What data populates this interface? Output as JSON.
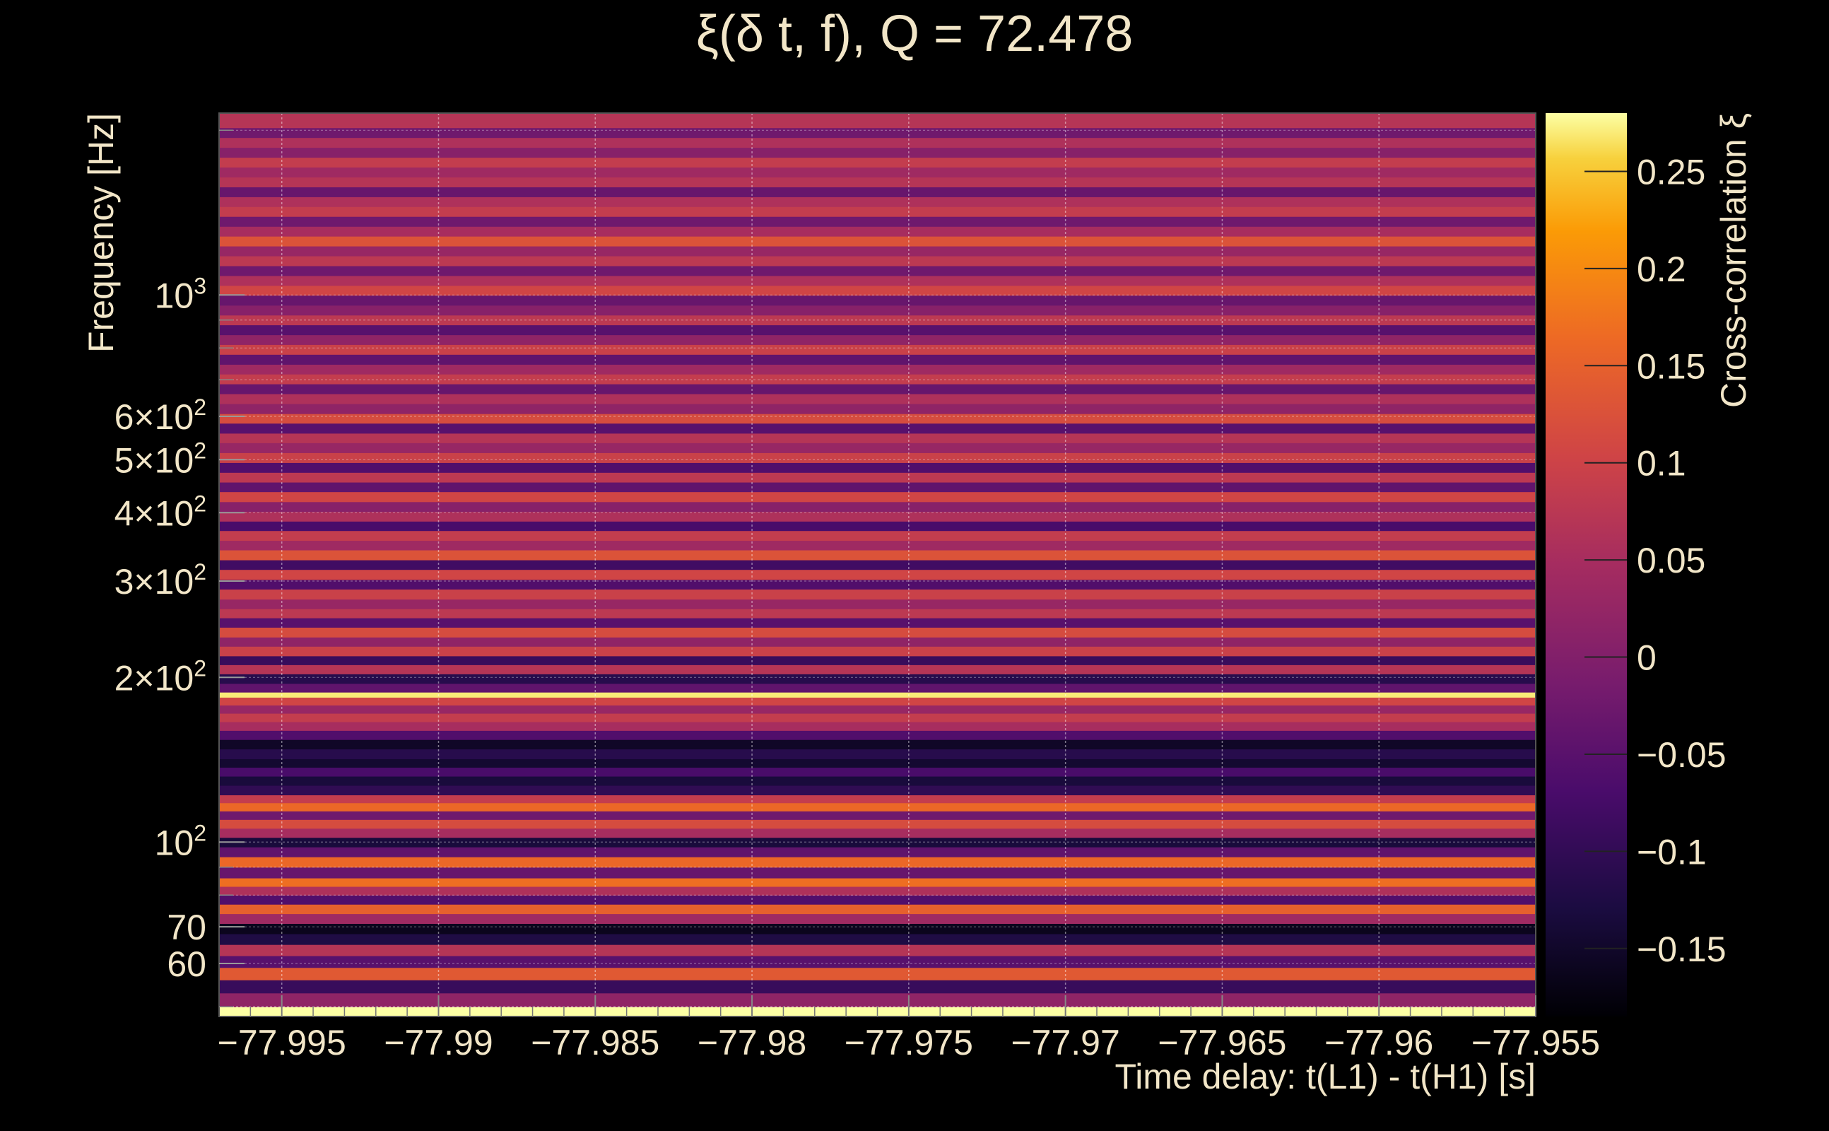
{
  "chart_data": {
    "type": "heatmap",
    "title": "ξ(δ t, f), Q = 72.478",
    "xlabel": "Time delay: t(L1) - t(H1) [s]",
    "ylabel": "Frequency [Hz]",
    "colorbar_label": "Cross-correlation ξ",
    "x_scale": "linear",
    "y_scale": "log",
    "xlim": [
      -77.997,
      -77.955
    ],
    "ylim": [
      48,
      2150
    ],
    "zlim": [
      -0.185,
      0.28
    ],
    "grid": true,
    "colormap": "inferno",
    "x_ticks": [
      {
        "value": -77.995,
        "label": "−77.995"
      },
      {
        "value": -77.99,
        "label": "−77.99"
      },
      {
        "value": -77.985,
        "label": "−77.985"
      },
      {
        "value": -77.98,
        "label": "−77.98"
      },
      {
        "value": -77.975,
        "label": "−77.975"
      },
      {
        "value": -77.97,
        "label": "−77.97"
      },
      {
        "value": -77.965,
        "label": "−77.965"
      },
      {
        "value": -77.96,
        "label": "−77.96"
      },
      {
        "value": -77.955,
        "label": "−77.955"
      }
    ],
    "y_ticks": [
      {
        "value": 60,
        "base": "60",
        "exp": ""
      },
      {
        "value": 70,
        "base": "70",
        "exp": ""
      },
      {
        "value": 100,
        "base": "10",
        "exp": "2"
      },
      {
        "value": 200,
        "base": "2×10",
        "exp": "2"
      },
      {
        "value": 300,
        "base": "3×10",
        "exp": "2"
      },
      {
        "value": 400,
        "base": "4×10",
        "exp": "2"
      },
      {
        "value": 500,
        "base": "5×10",
        "exp": "2"
      },
      {
        "value": 600,
        "base": "6×10",
        "exp": "2"
      },
      {
        "value": 1000,
        "base": "10",
        "exp": "3"
      }
    ],
    "colorbar_ticks": [
      {
        "value": 0.25,
        "label": "0.25"
      },
      {
        "value": 0.2,
        "label": "0.2"
      },
      {
        "value": 0.15,
        "label": "0.15"
      },
      {
        "value": 0.1,
        "label": "0.1"
      },
      {
        "value": 0.05,
        "label": "0.05"
      },
      {
        "value": 0.0,
        "label": "0"
      },
      {
        "value": -0.05,
        "label": "−0.05"
      },
      {
        "value": -0.1,
        "label": "−0.1"
      },
      {
        "value": -0.15,
        "label": "−0.15"
      }
    ],
    "frequency_bands": [
      {
        "f_low": 48,
        "f_high": 50,
        "xi": 0.28
      },
      {
        "f_low": 50,
        "f_high": 53,
        "xi": 0.02
      },
      {
        "f_low": 53,
        "f_high": 56,
        "xi": -0.09
      },
      {
        "f_low": 56,
        "f_high": 59,
        "xi": 0.14
      },
      {
        "f_low": 59,
        "f_high": 62,
        "xi": -0.05
      },
      {
        "f_low": 62,
        "f_high": 65,
        "xi": 0.07
      },
      {
        "f_low": 65,
        "f_high": 68,
        "xi": -0.12
      },
      {
        "f_low": 68,
        "f_high": 71,
        "xi": -0.16
      },
      {
        "f_low": 71,
        "f_high": 74,
        "xi": 0.04
      },
      {
        "f_low": 74,
        "f_high": 77,
        "xi": 0.15
      },
      {
        "f_low": 77,
        "f_high": 80,
        "xi": -0.06
      },
      {
        "f_low": 80,
        "f_high": 83,
        "xi": 0.06
      },
      {
        "f_low": 83,
        "f_high": 86,
        "xi": 0.17
      },
      {
        "f_low": 86,
        "f_high": 90,
        "xi": -0.03
      },
      {
        "f_low": 90,
        "f_high": 94,
        "xi": 0.16
      },
      {
        "f_low": 94,
        "f_high": 98,
        "xi": -0.04
      },
      {
        "f_low": 98,
        "f_high": 102,
        "xi": -0.13
      },
      {
        "f_low": 102,
        "f_high": 106,
        "xi": 0.05
      },
      {
        "f_low": 106,
        "f_high": 110,
        "xi": 0.12
      },
      {
        "f_low": 110,
        "f_high": 114,
        "xi": -0.02
      },
      {
        "f_low": 114,
        "f_high": 118,
        "xi": 0.16
      },
      {
        "f_low": 118,
        "f_high": 122,
        "xi": 0.09
      },
      {
        "f_low": 122,
        "f_high": 127,
        "xi": -0.1
      },
      {
        "f_low": 127,
        "f_high": 132,
        "xi": -0.13
      },
      {
        "f_low": 132,
        "f_high": 137,
        "xi": -0.07
      },
      {
        "f_low": 137,
        "f_high": 142,
        "xi": -0.14
      },
      {
        "f_low": 142,
        "f_high": 148,
        "xi": -0.11
      },
      {
        "f_low": 148,
        "f_high": 154,
        "xi": -0.15
      },
      {
        "f_low": 154,
        "f_high": 160,
        "xi": -0.06
      },
      {
        "f_low": 160,
        "f_high": 166,
        "xi": 0.05
      },
      {
        "f_low": 166,
        "f_high": 172,
        "xi": 0.09
      },
      {
        "f_low": 172,
        "f_high": 178,
        "xi": 0.03
      },
      {
        "f_low": 178,
        "f_high": 184,
        "xi": 0.11
      },
      {
        "f_low": 184,
        "f_high": 188,
        "xi": 0.27
      },
      {
        "f_low": 188,
        "f_high": 195,
        "xi": -0.04
      },
      {
        "f_low": 195,
        "f_high": 203,
        "xi": -0.11
      },
      {
        "f_low": 203,
        "f_high": 211,
        "xi": 0.07
      },
      {
        "f_low": 211,
        "f_high": 219,
        "xi": -0.09
      },
      {
        "f_low": 219,
        "f_high": 228,
        "xi": 0.1
      },
      {
        "f_low": 228,
        "f_high": 237,
        "xi": 0.02
      },
      {
        "f_low": 237,
        "f_high": 247,
        "xi": 0.12
      },
      {
        "f_low": 247,
        "f_high": 257,
        "xi": -0.05
      },
      {
        "f_low": 257,
        "f_high": 267,
        "xi": 0.08
      },
      {
        "f_low": 267,
        "f_high": 278,
        "xi": 0.03
      },
      {
        "f_low": 278,
        "f_high": 290,
        "xi": 0.1
      },
      {
        "f_low": 290,
        "f_high": 302,
        "xi": -0.06
      },
      {
        "f_low": 302,
        "f_high": 315,
        "xi": 0.11
      },
      {
        "f_low": 315,
        "f_high": 328,
        "xi": -0.08
      },
      {
        "f_low": 328,
        "f_high": 342,
        "xi": 0.13
      },
      {
        "f_low": 342,
        "f_high": 356,
        "xi": 0.04
      },
      {
        "f_low": 356,
        "f_high": 371,
        "xi": 0.09
      },
      {
        "f_low": 371,
        "f_high": 386,
        "xi": -0.07
      },
      {
        "f_low": 386,
        "f_high": 402,
        "xi": 0.06
      },
      {
        "f_low": 402,
        "f_high": 419,
        "xi": 0.01
      },
      {
        "f_low": 419,
        "f_high": 437,
        "xi": 0.11
      },
      {
        "f_low": 437,
        "f_high": 455,
        "xi": -0.04
      },
      {
        "f_low": 455,
        "f_high": 474,
        "xi": 0.08
      },
      {
        "f_low": 474,
        "f_high": 494,
        "xi": -0.06
      },
      {
        "f_low": 494,
        "f_high": 515,
        "xi": 0.1
      },
      {
        "f_low": 515,
        "f_high": 537,
        "xi": 0.03
      },
      {
        "f_low": 537,
        "f_high": 559,
        "xi": 0.07
      },
      {
        "f_low": 559,
        "f_high": 583,
        "xi": -0.05
      },
      {
        "f_low": 583,
        "f_high": 607,
        "xi": 0.12
      },
      {
        "f_low": 607,
        "f_high": 633,
        "xi": 0.02
      },
      {
        "f_low": 633,
        "f_high": 660,
        "xi": 0.06
      },
      {
        "f_low": 660,
        "f_high": 688,
        "xi": -0.03
      },
      {
        "f_low": 688,
        "f_high": 717,
        "xi": 0.09
      },
      {
        "f_low": 717,
        "f_high": 747,
        "xi": 0.04
      },
      {
        "f_low": 747,
        "f_high": 779,
        "xi": -0.04
      },
      {
        "f_low": 779,
        "f_high": 812,
        "xi": 0.1
      },
      {
        "f_low": 812,
        "f_high": 846,
        "xi": 0.02
      },
      {
        "f_low": 846,
        "f_high": 882,
        "xi": -0.05
      },
      {
        "f_low": 882,
        "f_high": 919,
        "xi": 0.08
      },
      {
        "f_low": 919,
        "f_high": 958,
        "xi": 0.01
      },
      {
        "f_low": 958,
        "f_high": 999,
        "xi": -0.03
      },
      {
        "f_low": 999,
        "f_high": 1041,
        "xi": 0.11
      },
      {
        "f_low": 1041,
        "f_high": 1085,
        "xi": 0.06
      },
      {
        "f_low": 1085,
        "f_high": 1131,
        "xi": -0.02
      },
      {
        "f_low": 1131,
        "f_high": 1179,
        "xi": 0.08
      },
      {
        "f_low": 1179,
        "f_high": 1229,
        "xi": 0.03
      },
      {
        "f_low": 1229,
        "f_high": 1281,
        "xi": 0.13
      },
      {
        "f_low": 1281,
        "f_high": 1335,
        "xi": 0.05
      },
      {
        "f_low": 1335,
        "f_high": 1392,
        "xi": -0.02
      },
      {
        "f_low": 1392,
        "f_high": 1451,
        "xi": 0.09
      },
      {
        "f_low": 1451,
        "f_high": 1512,
        "xi": 0.06
      },
      {
        "f_low": 1512,
        "f_high": 1576,
        "xi": -0.03
      },
      {
        "f_low": 1576,
        "f_high": 1643,
        "xi": 0.07
      },
      {
        "f_low": 1643,
        "f_high": 1713,
        "xi": 0.04
      },
      {
        "f_low": 1713,
        "f_high": 1785,
        "xi": 0.09
      },
      {
        "f_low": 1785,
        "f_high": 1861,
        "xi": 0.01
      },
      {
        "f_low": 1861,
        "f_high": 1940,
        "xi": 0.06
      },
      {
        "f_low": 1940,
        "f_high": 2022,
        "xi": -0.02
      },
      {
        "f_low": 2022,
        "f_high": 2150,
        "xi": 0.07
      }
    ]
  }
}
